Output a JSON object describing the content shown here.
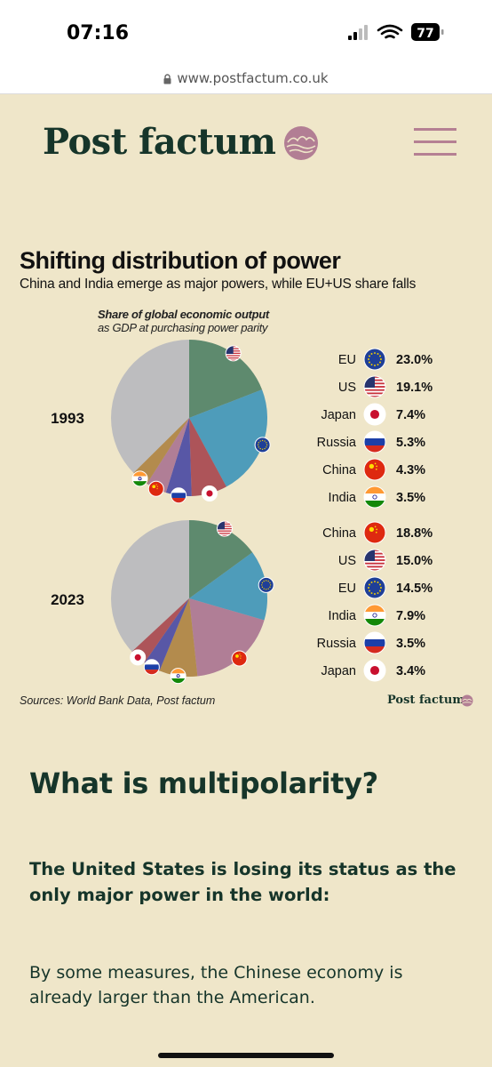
{
  "status_bar": {
    "time": "07:16",
    "battery": "77"
  },
  "browser": {
    "url": "www.postfactum.co.uk"
  },
  "site": {
    "brand": "Post factum"
  },
  "article": {
    "heading": "What is multipolarity?",
    "bold_paragraph": "The United States is losing its status as the only major power in the world:",
    "paragraph": "By some measures, the Chinese economy is already larger than the American."
  },
  "chart_data": {
    "type": "pie",
    "title": "Shifting distribution of power",
    "subtitle": "China and India emerge as major powers, while EU+US share falls",
    "note_bold": "Share of global economic output",
    "note": "as GDP at purchasing power parity",
    "sources": "Sources: World Bank Data, Post factum",
    "unit": "%",
    "colors": {
      "US": "#5e8a6e",
      "EU": "#4e9cba",
      "China": "#b07e96",
      "India": "#b38b4d",
      "Russia": "#5857a6",
      "Japan": "#ad5459",
      "rest": "#bdbdbf"
    },
    "charts": [
      {
        "year": "1993",
        "slices_order": [
          "US",
          "EU",
          "Japan",
          "Russia",
          "China",
          "India"
        ],
        "legend": [
          {
            "country": "EU",
            "label": "EU",
            "value": 23.0,
            "value_label": "23.0%",
            "flag": "eu-flag-icon"
          },
          {
            "country": "US",
            "label": "US",
            "value": 19.1,
            "value_label": "19.1%",
            "flag": "us-flag-icon"
          },
          {
            "country": "Japan",
            "label": "Japan",
            "value": 7.4,
            "value_label": "7.4%",
            "flag": "japan-flag-icon"
          },
          {
            "country": "Russia",
            "label": "Russia",
            "value": 5.3,
            "value_label": "5.3%",
            "flag": "russia-flag-icon"
          },
          {
            "country": "China",
            "label": "China",
            "value": 4.3,
            "value_label": "4.3%",
            "flag": "china-flag-icon"
          },
          {
            "country": "India",
            "label": "India",
            "value": 3.5,
            "value_label": "3.5%",
            "flag": "india-flag-icon"
          }
        ]
      },
      {
        "year": "2023",
        "slices_order": [
          "US",
          "EU",
          "China",
          "India",
          "Russia",
          "Japan"
        ],
        "legend": [
          {
            "country": "China",
            "label": "China",
            "value": 18.8,
            "value_label": "18.8%",
            "flag": "china-flag-icon"
          },
          {
            "country": "US",
            "label": "US",
            "value": 15.0,
            "value_label": "15.0%",
            "flag": "us-flag-icon"
          },
          {
            "country": "EU",
            "label": "EU",
            "value": 14.5,
            "value_label": "14.5%",
            "flag": "eu-flag-icon"
          },
          {
            "country": "India",
            "label": "India",
            "value": 7.9,
            "value_label": "7.9%",
            "flag": "india-flag-icon"
          },
          {
            "country": "Russia",
            "label": "Russia",
            "value": 3.5,
            "value_label": "3.5%",
            "flag": "russia-flag-icon"
          },
          {
            "country": "Japan",
            "label": "Japan",
            "value": 3.4,
            "value_label": "3.4%",
            "flag": "japan-flag-icon"
          }
        ]
      }
    ]
  }
}
